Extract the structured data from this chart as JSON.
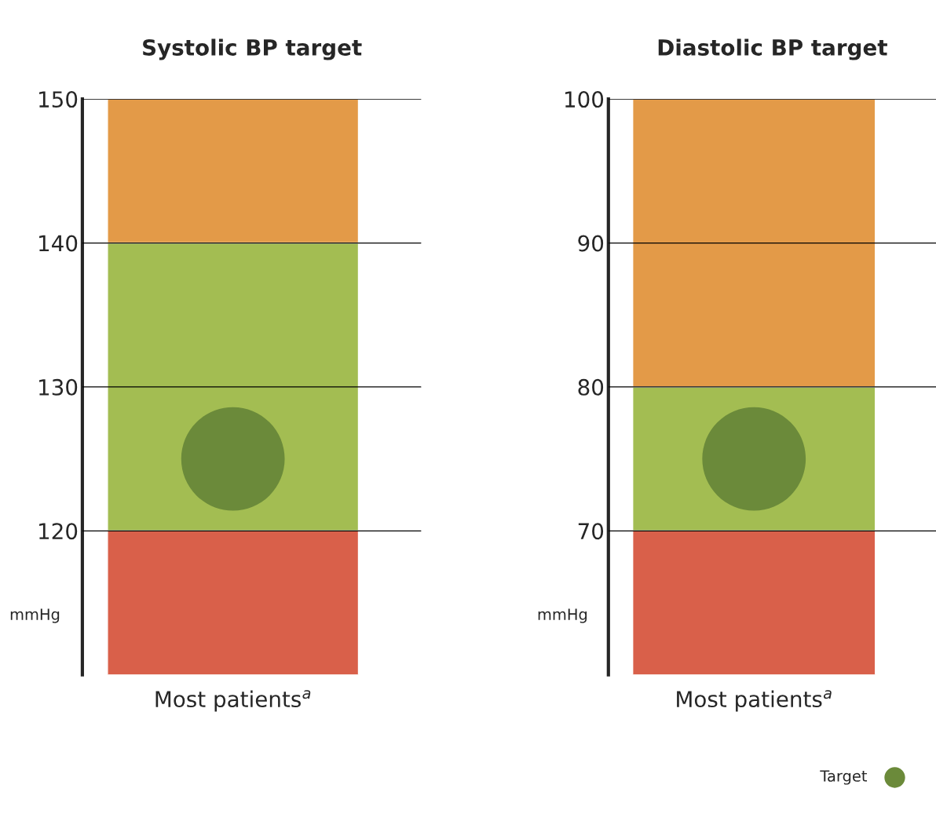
{
  "chart_data": [
    {
      "type": "bar",
      "title": "Systolic BP target",
      "ylabel": "mmHg",
      "categories": [
        "Most patients$^{a}$"
      ],
      "ylim": [
        110,
        150
      ],
      "yticks": [
        120,
        130,
        140,
        150
      ],
      "grid": "y",
      "marker": "circle",
      "series": [
        {
          "color": "#d9604a",
          "base": [
            110
          ],
          "values": [
            10
          ]
        },
        {
          "color": "#a3bd52",
          "base": [
            120
          ],
          "values": [
            20
          ]
        },
        {
          "color": "#e39a48",
          "base": [
            140
          ],
          "values": [
            10
          ]
        },
        {
          "type": "scatter",
          "color": "#6b8a3a",
          "values": [
            125
          ]
        }
      ]
    },
    {
      "type": "bar",
      "title": "Diastolic BP target",
      "ylabel": "mmHg",
      "categories": [
        "Most patients$^{a}$"
      ],
      "ylim": [
        60,
        100
      ],
      "yticks": [
        70,
        80,
        90,
        100
      ],
      "grid": "y",
      "marker": "circle",
      "legend": "bottom right",
      "series": [
        {
          "color": "#d9604a",
          "base": [
            60
          ],
          "values": [
            10
          ]
        },
        {
          "color": "#a3bd52",
          "base": [
            70
          ],
          "values": [
            10
          ]
        },
        {
          "color": "#e39a48",
          "base": [
            80
          ],
          "values": [
            20
          ]
        },
        {
          "type": "scatter",
          "name": "Target",
          "color": "#6b8a3a",
          "values": [
            75
          ]
        }
      ]
    }
  ]
}
